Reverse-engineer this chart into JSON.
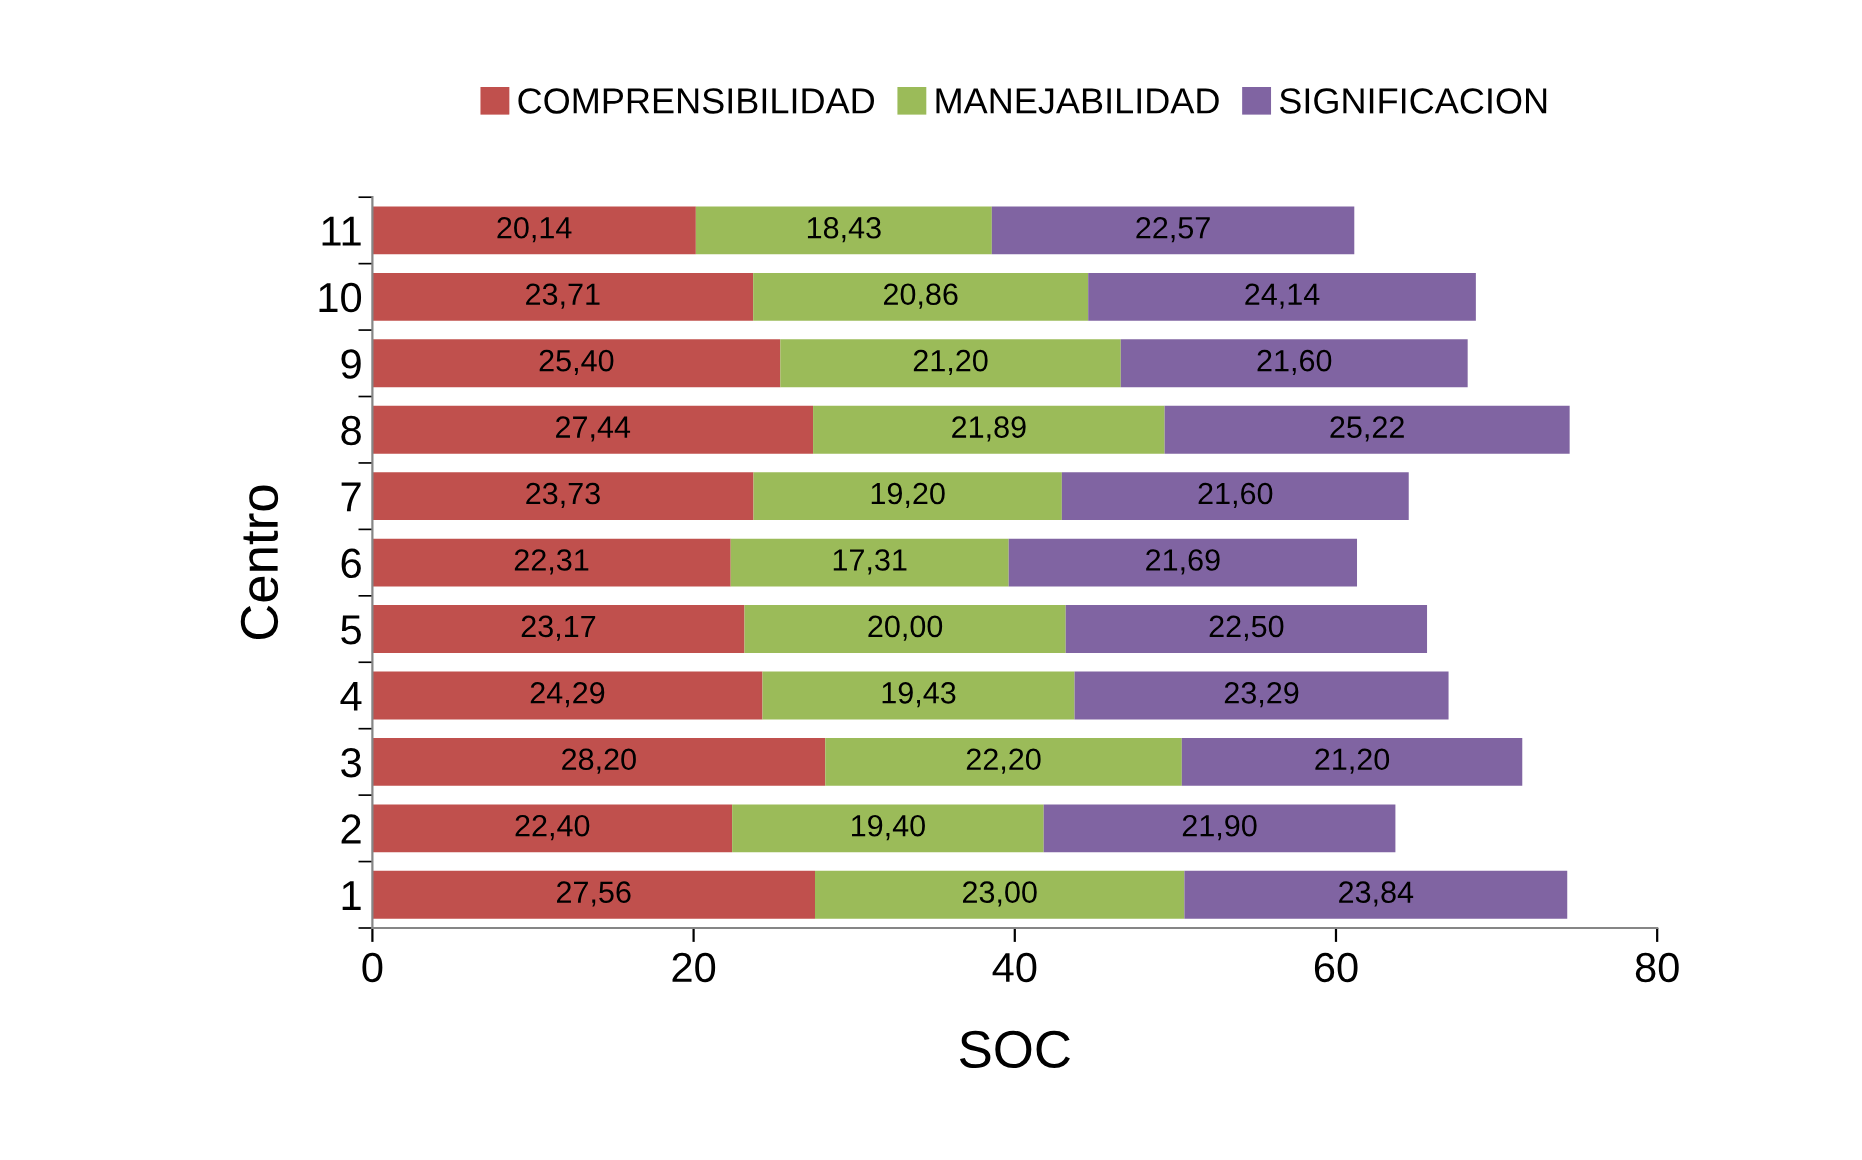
{
  "chart_data": {
    "type": "bar",
    "orientation": "horizontal",
    "stacked": true,
    "xlabel": "SOC",
    "ylabel": "Centro",
    "categories": [
      "11",
      "10",
      "9",
      "8",
      "7",
      "6",
      "5",
      "4",
      "3",
      "2",
      "1"
    ],
    "series": [
      {
        "name": "COMPRENSIBILIDAD",
        "color": "#c0504d",
        "values": [
          20.14,
          23.71,
          25.4,
          27.44,
          23.73,
          22.31,
          23.17,
          24.29,
          28.2,
          22.4,
          27.56
        ],
        "value_labels": [
          "20,14",
          "23,71",
          "25,40",
          "27,44",
          "23,73",
          "22,31",
          "23,17",
          "24,29",
          "28,20",
          "22,40",
          "27,56"
        ]
      },
      {
        "name": "MANEJABILIDAD",
        "color": "#9bbb59",
        "values": [
          18.43,
          20.86,
          21.2,
          21.89,
          19.2,
          17.31,
          20.0,
          19.43,
          22.2,
          19.4,
          23.0
        ],
        "value_labels": [
          "18,43",
          "20,86",
          "21,20",
          "21,89",
          "19,20",
          "17,31",
          "20,00",
          "19,43",
          "22,20",
          "19,40",
          "23,00"
        ]
      },
      {
        "name": "SIGNIFICACION",
        "color": "#8064a2",
        "values": [
          22.57,
          24.14,
          21.6,
          25.22,
          21.6,
          21.69,
          22.5,
          23.29,
          21.2,
          21.9,
          23.84
        ],
        "value_labels": [
          "22,57",
          "24,14",
          "21,60",
          "25,22",
          "21,60",
          "21,69",
          "22,50",
          "23,29",
          "21,20",
          "21,90",
          "23,84"
        ]
      }
    ],
    "xlim": [
      0,
      80
    ],
    "xticks": [
      0,
      20,
      40,
      60,
      80
    ],
    "grid": false,
    "legend": "top"
  }
}
